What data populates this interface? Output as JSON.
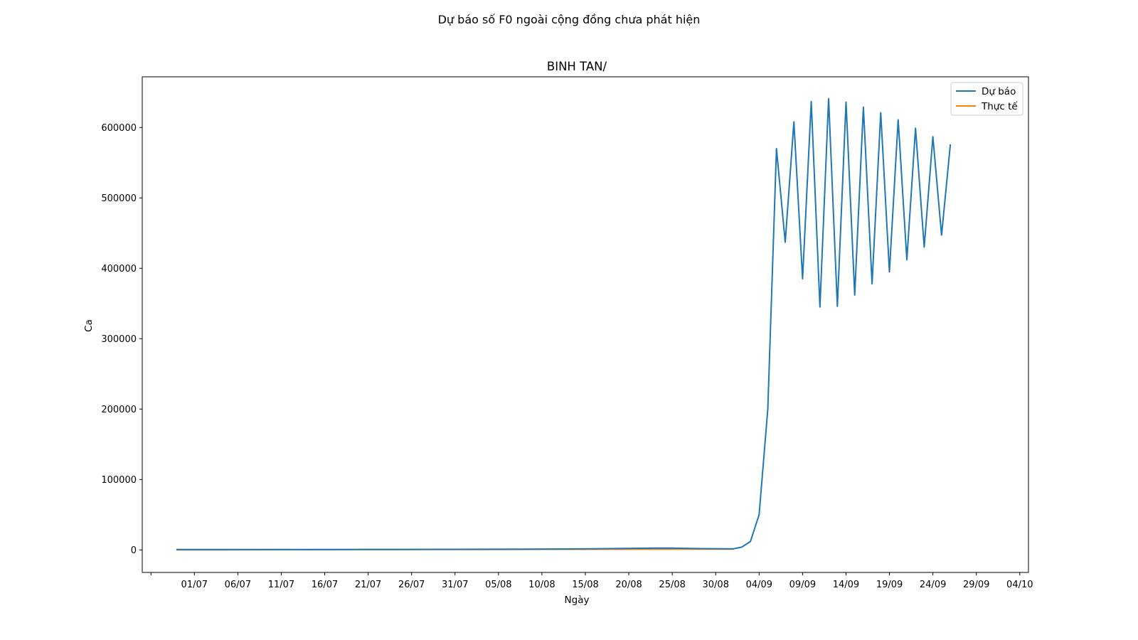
{
  "chart_data": {
    "type": "line",
    "suptitle": "Dự báo số F0 ngoài cộng đồng chưa phát hiện",
    "title": "BINH TAN/",
    "xlabel": "Ngày",
    "ylabel": "Ca",
    "grid": false,
    "legend_position": "top-right",
    "ylim": [
      -32000,
      672000
    ],
    "xlim": [
      "2021-06-25",
      "2021-10-05"
    ],
    "yticks": [
      0,
      100000,
      200000,
      300000,
      400000,
      500000,
      600000
    ],
    "ytick_labels": [
      "0",
      "100000",
      "200000",
      "300000",
      "400000",
      "500000",
      "600000"
    ],
    "xticks": [
      "2021-06-26",
      "2021-07-01",
      "2021-07-06",
      "2021-07-11",
      "2021-07-16",
      "2021-07-21",
      "2021-07-26",
      "2021-07-31",
      "2021-08-05",
      "2021-08-10",
      "2021-08-15",
      "2021-08-20",
      "2021-08-25",
      "2021-08-30",
      "2021-09-04",
      "2021-09-09",
      "2021-09-14",
      "2021-09-19",
      "2021-09-24",
      "2021-09-29",
      "2021-10-04"
    ],
    "xtick_labels": [
      "",
      "01/07",
      "06/07",
      "11/07",
      "16/07",
      "21/07",
      "26/07",
      "31/07",
      "05/08",
      "10/08",
      "15/08",
      "20/08",
      "25/08",
      "30/08",
      "04/09",
      "09/09",
      "14/09",
      "19/09",
      "24/09",
      "29/09",
      "04/10"
    ],
    "series": [
      {
        "name": "Dự báo",
        "color": "#1f77b4",
        "points": [
          [
            "2021-06-29",
            500
          ],
          [
            "2021-07-04",
            500
          ],
          [
            "2021-07-09",
            500
          ],
          [
            "2021-07-14",
            600
          ],
          [
            "2021-07-19",
            600
          ],
          [
            "2021-07-24",
            700
          ],
          [
            "2021-07-29",
            800
          ],
          [
            "2021-08-03",
            900
          ],
          [
            "2021-08-08",
            1000
          ],
          [
            "2021-08-13",
            1300
          ],
          [
            "2021-08-18",
            1800
          ],
          [
            "2021-08-23",
            2500
          ],
          [
            "2021-08-25",
            2600
          ],
          [
            "2021-08-28",
            1800
          ],
          [
            "2021-09-01",
            1500
          ],
          [
            "2021-09-02",
            4000
          ],
          [
            "2021-09-03",
            12000
          ],
          [
            "2021-09-04",
            50000
          ],
          [
            "2021-09-05",
            200000
          ],
          [
            "2021-09-06",
            570000
          ],
          [
            "2021-09-07",
            437000
          ],
          [
            "2021-09-08",
            608000
          ],
          [
            "2021-09-09",
            385000
          ],
          [
            "2021-09-10",
            637000
          ],
          [
            "2021-09-11",
            345000
          ],
          [
            "2021-09-12",
            641000
          ],
          [
            "2021-09-13",
            346000
          ],
          [
            "2021-09-14",
            636000
          ],
          [
            "2021-09-15",
            362000
          ],
          [
            "2021-09-16",
            629000
          ],
          [
            "2021-09-17",
            378000
          ],
          [
            "2021-09-18",
            621000
          ],
          [
            "2021-09-19",
            395000
          ],
          [
            "2021-09-20",
            611000
          ],
          [
            "2021-09-21",
            412000
          ],
          [
            "2021-09-22",
            599000
          ],
          [
            "2021-09-23",
            430000
          ],
          [
            "2021-09-24",
            587000
          ],
          [
            "2021-09-25",
            447000
          ],
          [
            "2021-09-26",
            575000
          ]
        ]
      },
      {
        "name": "Thực tế",
        "color": "#ff7f0e",
        "points": [
          [
            "2021-06-29",
            100
          ],
          [
            "2021-07-04",
            150
          ],
          [
            "2021-07-09",
            250
          ],
          [
            "2021-07-14",
            300
          ],
          [
            "2021-07-19",
            400
          ],
          [
            "2021-07-24",
            450
          ],
          [
            "2021-07-29",
            500
          ],
          [
            "2021-08-03",
            600
          ],
          [
            "2021-08-08",
            700
          ],
          [
            "2021-08-13",
            800
          ],
          [
            "2021-08-18",
            900
          ],
          [
            "2021-08-23",
            1000
          ],
          [
            "2021-08-28",
            1000
          ],
          [
            "2021-09-01",
            1100
          ]
        ]
      }
    ]
  }
}
